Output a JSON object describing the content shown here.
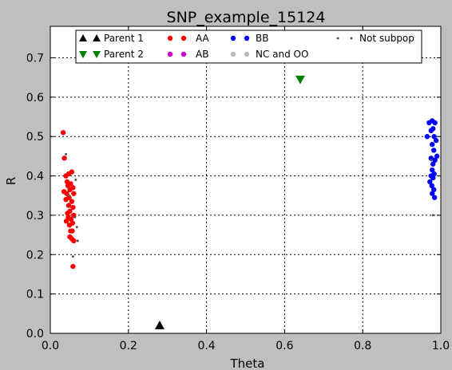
{
  "chart_data": {
    "type": "scatter",
    "title": "SNP_example_15124",
    "xlabel": "Theta",
    "ylabel": "R",
    "xlim": [
      0.0,
      1.0
    ],
    "ylim": [
      0.0,
      0.78
    ],
    "xticks": [
      "0.0",
      "0.2",
      "0.4",
      "0.6",
      "0.8",
      "1.0"
    ],
    "yticks": [
      "0.0",
      "0.1",
      "0.2",
      "0.3",
      "0.4",
      "0.5",
      "0.6",
      "0.7"
    ],
    "grid": true,
    "legend_position": "top",
    "series": [
      {
        "name": "Parent 1",
        "marker": "triangle-up",
        "color": "#000000",
        "points": [
          [
            0.28,
            0.02
          ]
        ]
      },
      {
        "name": "Parent 2",
        "marker": "triangle-down",
        "color": "#008000",
        "points": [
          [
            0.64,
            0.645
          ]
        ]
      },
      {
        "name": "AA",
        "marker": "dot",
        "color": "#ff0000",
        "points": [
          [
            0.033,
            0.51
          ],
          [
            0.036,
            0.445
          ],
          [
            0.04,
            0.4
          ],
          [
            0.047,
            0.405
          ],
          [
            0.055,
            0.41
          ],
          [
            0.043,
            0.385
          ],
          [
            0.052,
            0.38
          ],
          [
            0.045,
            0.375
          ],
          [
            0.058,
            0.37
          ],
          [
            0.05,
            0.365
          ],
          [
            0.035,
            0.36
          ],
          [
            0.042,
            0.355
          ],
          [
            0.06,
            0.355
          ],
          [
            0.048,
            0.345
          ],
          [
            0.04,
            0.34
          ],
          [
            0.055,
            0.335
          ],
          [
            0.047,
            0.325
          ],
          [
            0.058,
            0.32
          ],
          [
            0.05,
            0.31
          ],
          [
            0.044,
            0.305
          ],
          [
            0.06,
            0.3
          ],
          [
            0.046,
            0.295
          ],
          [
            0.053,
            0.29
          ],
          [
            0.041,
            0.285
          ],
          [
            0.057,
            0.28
          ],
          [
            0.049,
            0.275
          ],
          [
            0.052,
            0.26
          ],
          [
            0.056,
            0.26
          ],
          [
            0.05,
            0.245
          ],
          [
            0.055,
            0.24
          ],
          [
            0.06,
            0.235
          ],
          [
            0.058,
            0.17
          ]
        ]
      },
      {
        "name": "AB",
        "marker": "dot",
        "color": "#cc00cc",
        "points": []
      },
      {
        "name": "BB",
        "marker": "dot",
        "color": "#0000ff",
        "points": [
          [
            0.965,
            0.5
          ],
          [
            0.97,
            0.535
          ],
          [
            0.978,
            0.54
          ],
          [
            0.985,
            0.535
          ],
          [
            0.98,
            0.52
          ],
          [
            0.975,
            0.515
          ],
          [
            0.983,
            0.5
          ],
          [
            0.988,
            0.49
          ],
          [
            0.978,
            0.48
          ],
          [
            0.982,
            0.465
          ],
          [
            0.99,
            0.45
          ],
          [
            0.975,
            0.445
          ],
          [
            0.985,
            0.44
          ],
          [
            0.98,
            0.43
          ],
          [
            0.978,
            0.415
          ],
          [
            0.983,
            0.405
          ],
          [
            0.975,
            0.4
          ],
          [
            0.98,
            0.395
          ],
          [
            0.972,
            0.385
          ],
          [
            0.977,
            0.375
          ],
          [
            0.982,
            0.365
          ],
          [
            0.978,
            0.355
          ],
          [
            0.984,
            0.345
          ]
        ]
      },
      {
        "name": "NC and OO",
        "marker": "dot",
        "color": "#bbbbbb",
        "points": []
      },
      {
        "name": "Not subpop",
        "marker": "small-dot",
        "color": "#555555",
        "points": [
          [
            0.04,
            0.455
          ],
          [
            0.065,
            0.39
          ],
          [
            0.048,
            0.35
          ],
          [
            0.063,
            0.295
          ],
          [
            0.068,
            0.27
          ],
          [
            0.07,
            0.235
          ],
          [
            0.058,
            0.195
          ],
          [
            0.98,
            0.3
          ],
          [
            0.975,
            0.44
          ]
        ]
      }
    ]
  }
}
